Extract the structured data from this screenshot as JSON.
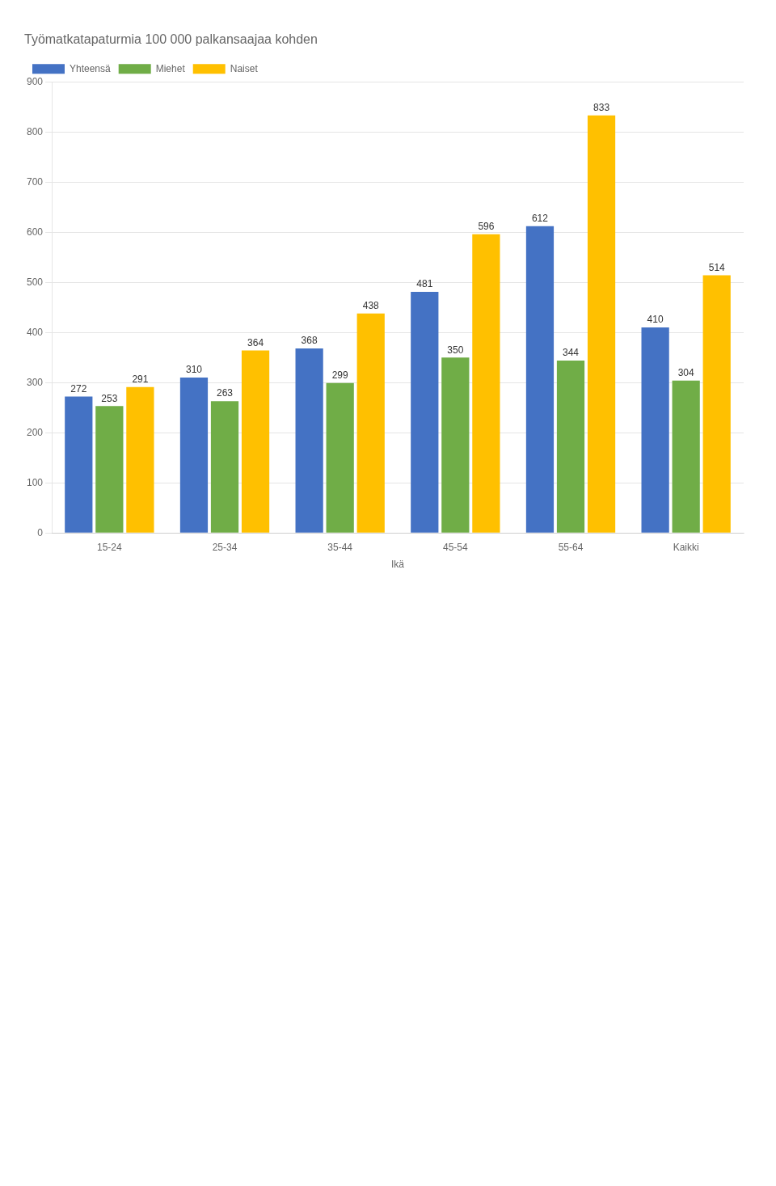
{
  "chart_data": {
    "type": "bar",
    "title": "Työmatkatapaturmia 100 000 palkansaajaa kohden",
    "xlabel": "Ikä",
    "categories": [
      "15-24",
      "25-34",
      "35-44",
      "45-54",
      "55-64",
      "Kaikki"
    ],
    "series": [
      {
        "name": "Yhteensä",
        "color": "#4472C4",
        "values": [
          272,
          310,
          368,
          481,
          612,
          410
        ]
      },
      {
        "name": "Miehet",
        "color": "#70AD47",
        "values": [
          253,
          263,
          299,
          350,
          344,
          304
        ]
      },
      {
        "name": "Naiset",
        "color": "#FFC000",
        "values": [
          291,
          364,
          438,
          596,
          833,
          514
        ]
      }
    ],
    "ylim": [
      0,
      900
    ],
    "yticks": [
      0,
      100,
      200,
      300,
      400,
      500,
      600,
      700,
      800,
      900
    ],
    "grid": true,
    "legend": "upper left",
    "data_labels": true
  }
}
